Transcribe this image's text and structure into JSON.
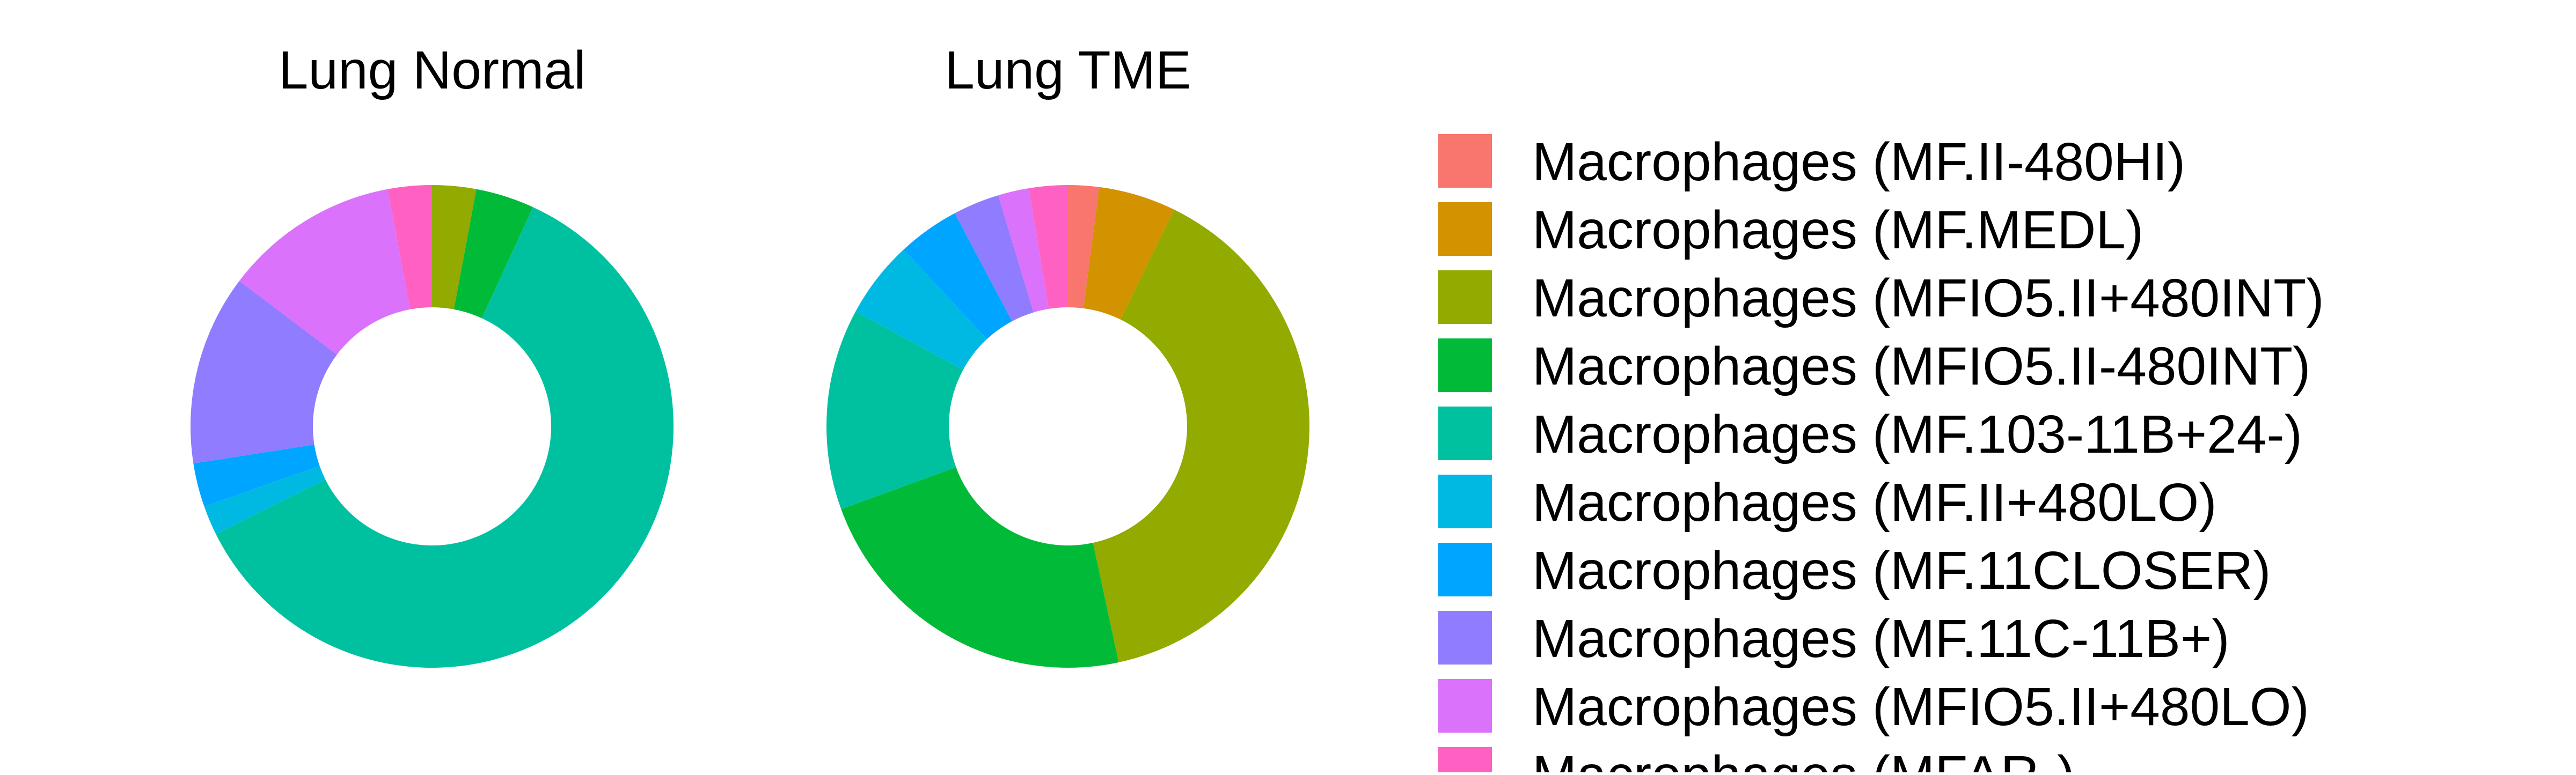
{
  "chart_data": {
    "type": "pie",
    "style": "donut",
    "legend_position": "right",
    "categories": [
      "Macrophages (MF.II-480HI)",
      "Macrophages (MF.MEDL)",
      "Macrophages (MFIO5.II+480INT)",
      "Macrophages (MFIO5.II-480INT)",
      "Macrophages (MF.103-11B+24-)",
      "Macrophages (MF.II+480LO)",
      "Macrophages (MF.11CLOSER)",
      "Macrophages (MF.11C-11B+)",
      "Macrophages (MFIO5.II+480LO)",
      "Macrophages (MFAR-)"
    ],
    "colors": [
      "#F8766D",
      "#D39200",
      "#93AA00",
      "#00BA38",
      "#00C19F",
      "#00B9E3",
      "#00A5FF",
      "#8F7CFF",
      "#DB72FB",
      "#FF61C3"
    ],
    "panels": [
      {
        "title": "Lung Normal",
        "values": [
          0,
          0,
          3,
          4,
          62,
          2,
          3,
          13,
          12,
          3
        ]
      },
      {
        "title": "Lung TME",
        "values": [
          2,
          5,
          38,
          22,
          13,
          5,
          4,
          3,
          2,
          2.5
        ]
      }
    ]
  }
}
